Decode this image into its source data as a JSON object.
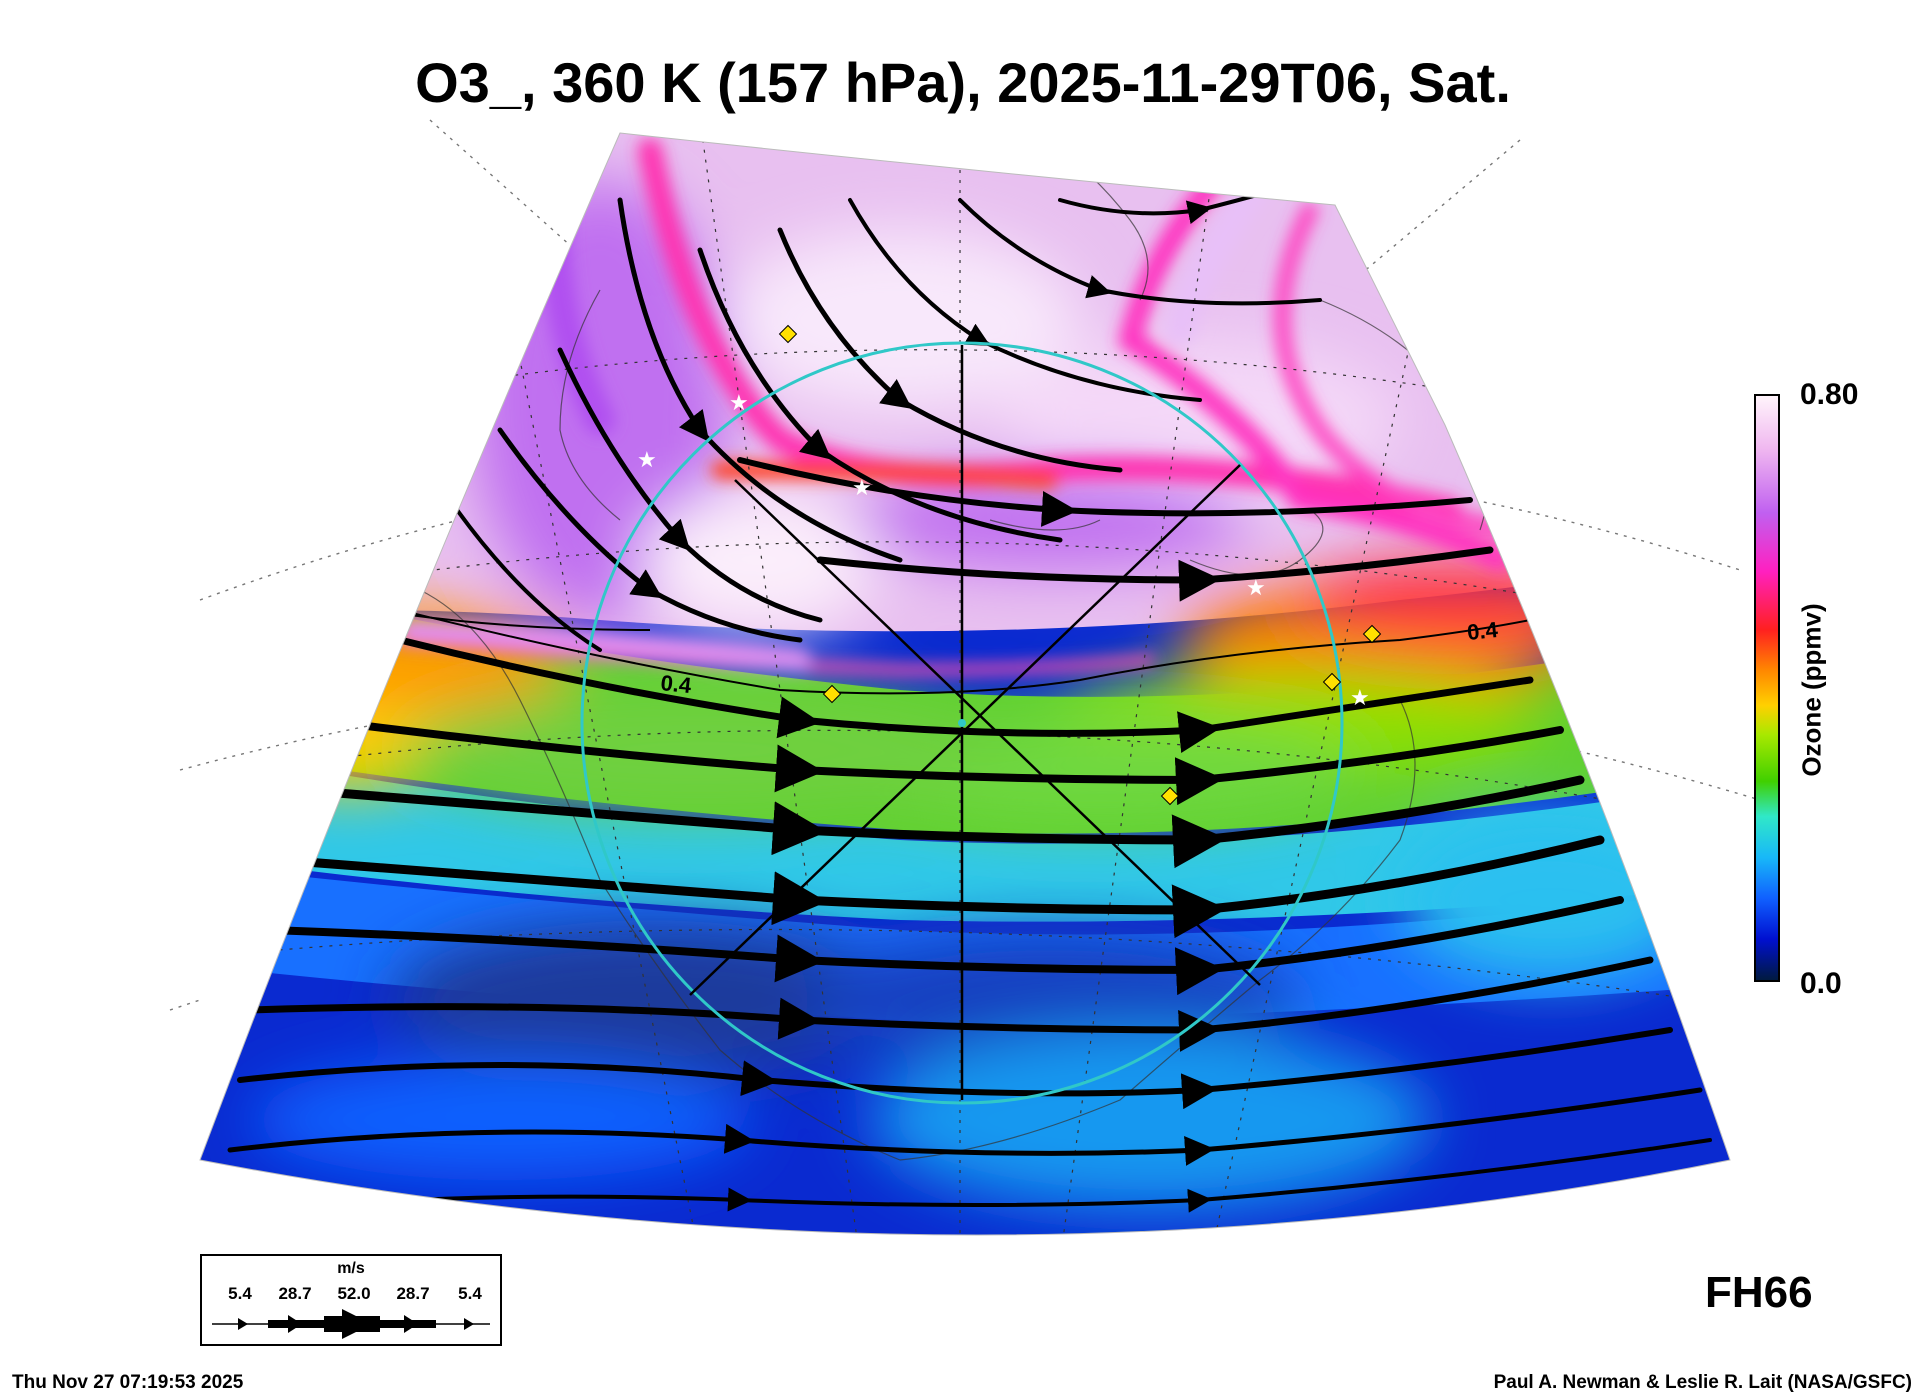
{
  "title": "O3_, 360 K (157 hPa), 2025-11-29T06, Sat.",
  "colorbar": {
    "max_label": "0.80",
    "min_label": "0.0",
    "title": "Ozone (ppmv)",
    "colors": [
      "#fff4fb",
      "#c060f0",
      "#ff20c0",
      "#ff2020",
      "#ff8800",
      "#ffd000",
      "#40d000",
      "#30e8c8",
      "#18b8f8",
      "#1060ff",
      "#0010d0",
      "#001a40"
    ]
  },
  "contour_labels": [
    "0.4",
    "0.4"
  ],
  "forecast_hour": "FH66",
  "legend": {
    "unit": "m/s",
    "values": [
      "5.4",
      "28.7",
      "52.0",
      "28.7",
      "5.4"
    ]
  },
  "footer": {
    "timestamp": "Thu Nov 27 07:19:53 2025",
    "credit": "Paul A. Newman & Leslie R. Lait (NASA/GSFC)"
  },
  "map_colors": {
    "high_ozone": "#f8e8f8",
    "purple": "#c070f0",
    "magenta": "#ff30c0",
    "orange": "#ff8000",
    "yellow": "#f0e000",
    "green": "#50d020",
    "cyan": "#30d8e0",
    "blue": "#1080ff",
    "dark_blue": "#0020d0",
    "ring": "#30c8c8",
    "marker": "#ffe000"
  }
}
